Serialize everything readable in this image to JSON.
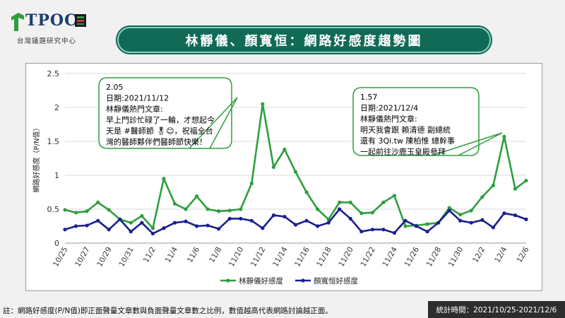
{
  "header": {
    "logo_text": "TPOC",
    "logo_subtitle": "台灣議題研究中心",
    "title": "林靜儀、顏寬恒：網路好感度趨勢圖"
  },
  "footer": {
    "note": "註：網路好感度(P/N值)即正面聲量文章數與負面聲量文章數之比例，數值越高代表網路討論越正面。",
    "period": "統計時間：2021/10/25-2021/12/6"
  },
  "colors": {
    "series1": "#2e9e3e",
    "series2": "#1a1f8f",
    "banner": "#116a56"
  },
  "chart_data": {
    "type": "line",
    "ylabel": "網路好感度（P/N值）",
    "ylim": [
      0,
      2.5
    ],
    "yticks": [
      "0",
      "0.5",
      "1",
      "1.5",
      "2",
      "2.5"
    ],
    "x_tick_labels": [
      "10/25",
      "10/27",
      "10/29",
      "10/31",
      "11/2",
      "11/4",
      "11/6",
      "11/8",
      "11/10",
      "11/12",
      "11/14",
      "11/16",
      "11/18",
      "11/20",
      "11/22",
      "11/24",
      "11/26",
      "11/28",
      "11/30",
      "12/2",
      "12/4",
      "12/6"
    ],
    "grid": "horizontal",
    "legend_position": "bottom",
    "series": [
      {
        "name": "林靜儀好感度",
        "values": [
          0.49,
          0.45,
          0.47,
          0.6,
          0.49,
          0.35,
          0.3,
          0.4,
          0.22,
          0.95,
          0.58,
          0.5,
          0.69,
          0.5,
          0.47,
          0.48,
          0.5,
          0.88,
          2.05,
          1.12,
          1.38,
          1.05,
          0.75,
          0.5,
          0.35,
          0.6,
          0.6,
          0.44,
          0.45,
          0.6,
          0.7,
          0.25,
          0.26,
          0.28,
          0.3,
          0.52,
          0.42,
          0.48,
          0.68,
          0.85,
          1.57,
          0.8,
          0.92
        ]
      },
      {
        "name": "顏寬恒好感度",
        "values": [
          0.2,
          0.25,
          0.26,
          0.33,
          0.2,
          0.35,
          0.17,
          0.3,
          0.14,
          0.22,
          0.3,
          0.32,
          0.25,
          0.26,
          0.21,
          0.36,
          0.36,
          0.33,
          0.22,
          0.41,
          0.39,
          0.27,
          0.33,
          0.25,
          0.3,
          0.5,
          0.36,
          0.17,
          0.2,
          0.2,
          0.15,
          0.33,
          0.25,
          0.17,
          0.3,
          0.48,
          0.33,
          0.3,
          0.34,
          0.23,
          0.44,
          0.41,
          0.35
        ]
      }
    ],
    "annotations": [
      {
        "value": "2.05",
        "lines": [
          "日期:2021/11/12",
          "林靜儀熱門文章:",
          "早上門診忙碌了一輪，才想起今",
          "天是 #醫師節 🎖😊，祝福全台",
          "灣的醫師夥伴們醫師節快樂！"
        ]
      },
      {
        "value": "1.57",
        "lines": [
          "日期:2021/12/4",
          "林靜儀熱門文章:",
          "明天我會跟 賴清德 副總統",
          "還有 3Qi.tw 陳柏惟 總幹事",
          "一起前往沙鹿玉皇殿參拜"
        ]
      }
    ]
  }
}
